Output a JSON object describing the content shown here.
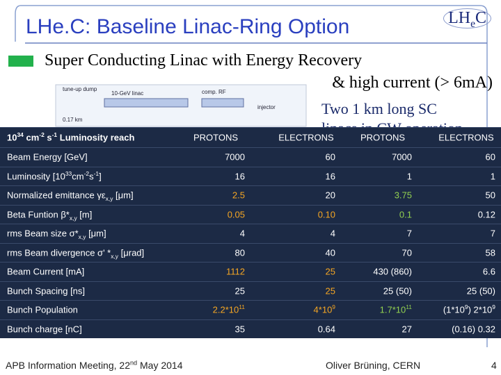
{
  "header": {
    "title": "LHe.C: Baseline Linac-Ring Option",
    "logo": [
      {
        "t": "LH"
      },
      {
        "t": "e",
        "sub": true
      },
      {
        "t": "C"
      }
    ]
  },
  "bullet": {
    "line1": "Super Conducting Linac with Energy Recovery",
    "line2": "& high current (> 6mA)"
  },
  "subnote": {
    "line1": "Two 1 km long SC",
    "line2": "linacs in CW operation"
  },
  "diagram": {
    "labels": [
      "tune-up dump",
      "10-GeV linac",
      "comp. RF",
      "injector",
      "0.17 km"
    ]
  },
  "table": {
    "header": [
      [
        {
          "t": "10"
        },
        {
          "t": "34",
          "sup": true
        },
        {
          "t": " cm"
        },
        {
          "t": "-2",
          "sup": true
        },
        {
          "t": " s"
        },
        {
          "t": "-1",
          "sup": true
        },
        {
          "t": " Luminosity reach"
        }
      ],
      "PROTONS",
      "ELECTRONS",
      "PROTONS",
      "ELECTRONS"
    ],
    "rows": [
      [
        "Beam Energy [GeV]",
        "7000",
        "60",
        "7000",
        "60"
      ],
      [
        [
          {
            "t": "Luminosity [10"
          },
          {
            "t": "33",
            "sup": true
          },
          {
            "t": "cm"
          },
          {
            "t": "-2",
            "sup": true
          },
          {
            "t": "s"
          },
          {
            "t": "-1",
            "sup": true
          },
          {
            "t": "]"
          }
        ],
        "16",
        "16",
        "1",
        "1"
      ],
      [
        [
          {
            "t": "Normalized emittance γε"
          },
          {
            "t": "x,y",
            "sub": true
          },
          {
            "t": " [μm]"
          }
        ],
        {
          "text": "2.5",
          "color": "#f5a623"
        },
        "20",
        {
          "text": "3.75",
          "color": "#92d050"
        },
        "50"
      ],
      [
        [
          {
            "t": "Beta Funtion β*"
          },
          {
            "t": "x,y",
            "sub": true
          },
          {
            "t": " [m]"
          }
        ],
        {
          "text": "0.05",
          "color": "#f5a623"
        },
        {
          "text": "0.10",
          "color": "#f5a623"
        },
        {
          "text": "0.1",
          "color": "#92d050"
        },
        "0.12"
      ],
      [
        [
          {
            "t": "rms Beam size σ*"
          },
          {
            "t": "x,y",
            "sub": true
          },
          {
            "t": " [μm]"
          }
        ],
        "4",
        "4",
        "7",
        "7"
      ],
      [
        [
          {
            "t": "rms Beam divergence σ' *"
          },
          {
            "t": "x,y",
            "sub": true
          },
          {
            "t": " [μrad]"
          }
        ],
        "80",
        "40",
        "70",
        "58"
      ],
      [
        "Beam Current [mA]",
        {
          "text": "1112",
          "color": "#f5a623"
        },
        {
          "text": "25",
          "color": "#f5a623"
        },
        "430 (860)",
        "6.6"
      ],
      [
        "Bunch Spacing [ns]",
        "25",
        {
          "text": "25",
          "color": "#f5a623"
        },
        "25 (50)",
        "25 (50)"
      ],
      [
        "Bunch Population",
        {
          "text": [
            {
              "t": "2.2*10"
            },
            {
              "t": "11",
              "sup": true
            }
          ],
          "color": "#f5a623"
        },
        {
          "text": [
            {
              "t": "4*10"
            },
            {
              "t": "9",
              "sup": true
            }
          ],
          "color": "#f5a623"
        },
        {
          "text": [
            {
              "t": "1.7*10"
            },
            {
              "t": "11",
              "sup": true
            }
          ],
          "color": "#92d050"
        },
        [
          {
            "t": "(1*10"
          },
          {
            "t": "9",
            "sup": true
          },
          {
            "t": ") 2*10"
          },
          {
            "t": "9",
            "sup": true
          }
        ]
      ],
      [
        "Bunch charge [nC]",
        "35",
        "0.64",
        "27",
        "(0.16) 0.32"
      ]
    ]
  },
  "footer": {
    "left": [
      {
        "t": "APB Information Meeting, 22"
      },
      {
        "t": "nd",
        "sup": true
      },
      {
        "t": " May 2014"
      }
    ],
    "center": "Oliver Brüning, CERN",
    "page": "4"
  }
}
